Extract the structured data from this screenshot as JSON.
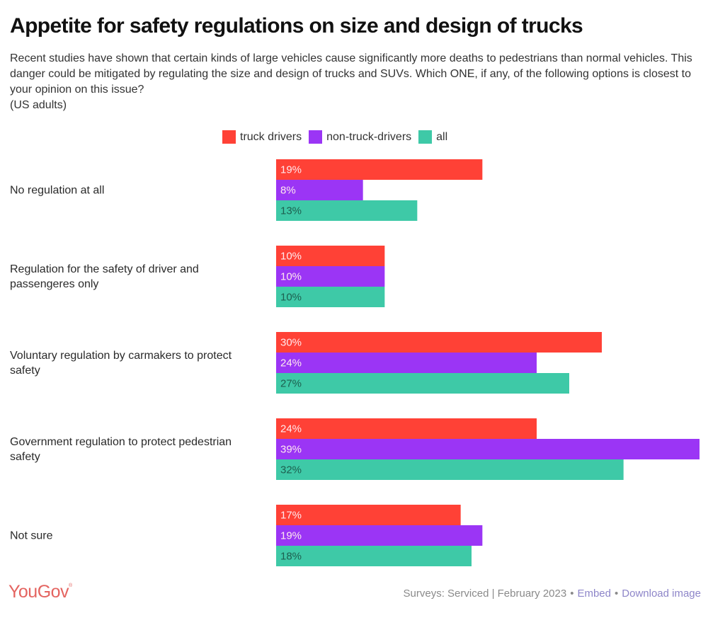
{
  "colors": {
    "truck_drivers": "#ff4136",
    "non_truck_drivers": "#9b35f5",
    "all": "#3ec9a7",
    "label_light": "#ffe9ee",
    "label_dark": "#1d5f4f"
  },
  "chart_data": {
    "type": "bar",
    "orientation": "horizontal",
    "title": "Appetite for safety regulations on size and design of trucks",
    "subtitle": "Recent studies have shown that certain kinds of large vehicles cause significantly more deaths to pedestrians than normal vehicles. This danger could be mitigated by regulating the size and design of trucks and SUVs. Which ONE, if any, of the following options is closest to your opinion on this issue?",
    "population": "(US adults)",
    "xlabel": "",
    "ylabel": "",
    "unit": "%",
    "xlim": [
      0,
      39
    ],
    "grid": false,
    "legend_position": "top-center",
    "categories": [
      [
        "No regulation at all"
      ],
      [
        "Regulation for the safety of driver and",
        "passengeres only"
      ],
      [
        "Voluntary regulation by carmakers to protect",
        "safety"
      ],
      [
        "Government regulation to protect pedestrian",
        "safety"
      ],
      [
        "Not sure"
      ]
    ],
    "series": [
      {
        "name": "truck drivers",
        "key": "truck_drivers",
        "values": [
          19,
          10,
          30,
          24,
          17
        ]
      },
      {
        "name": "non-truck-drivers",
        "key": "non_truck_drivers",
        "values": [
          8,
          10,
          24,
          39,
          19
        ]
      },
      {
        "name": "all",
        "key": "all",
        "values": [
          13,
          10,
          27,
          32,
          18
        ]
      }
    ]
  },
  "footer": {
    "logo": "YouGov",
    "source": "Surveys: Serviced | February 2023",
    "separator": "•",
    "embed_link": "Embed",
    "download_link": "Download image"
  }
}
